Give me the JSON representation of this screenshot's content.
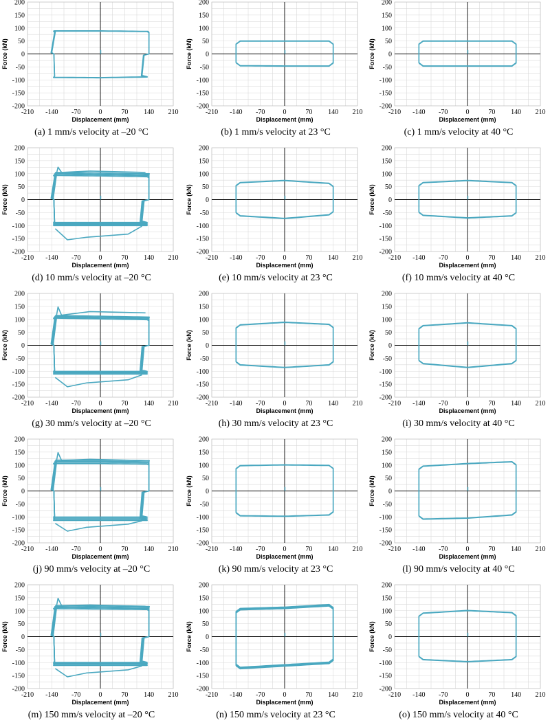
{
  "chart_data": {
    "type": "line",
    "xlabel": "Displacement (mm)",
    "ylabel": "Force (kN)",
    "xlim": [
      -210,
      210
    ],
    "ylim": [
      -200,
      200
    ],
    "x_ticks": [
      -210,
      -140,
      -70,
      0,
      70,
      140,
      210
    ],
    "y_ticks": [
      200,
      150,
      100,
      50,
      0,
      -50,
      -100,
      -150,
      -200
    ],
    "grid": true,
    "line_color": "#4aa8c0",
    "subplots": [
      {
        "caption": "(a) 1 mm/s velocity at –20 °C",
        "xmin": -140,
        "xmax": 140,
        "upper": [
          88,
          88,
          86
        ],
        "lower": [
          -90,
          -91,
          -88
        ],
        "spread": 0,
        "spike_up": 0,
        "spike_dn": 0,
        "extreme_up": 0,
        "extreme_dn": 0,
        "kind": "cold"
      },
      {
        "caption": "(b) 1 mm/s velocity at 23 °C",
        "xmin": -140,
        "xmax": 140,
        "upper": [
          49,
          49,
          49
        ],
        "lower": [
          -45,
          -46,
          -46
        ],
        "spread": 0,
        "spike_up": 0,
        "spike_dn": 0,
        "extreme_up": 0,
        "extreme_dn": 0,
        "kind": "warm"
      },
      {
        "caption": "(c) 1 mm/s velocity at 40 °C",
        "xmin": -140,
        "xmax": 140,
        "upper": [
          49,
          49,
          49
        ],
        "lower": [
          -46,
          -46,
          -46
        ],
        "spread": 0,
        "spike_up": 0,
        "spike_dn": 0,
        "extreme_up": 0,
        "extreme_dn": 0,
        "kind": "warm"
      },
      {
        "caption": "(d) 10 mm/s velocity at –20 °C",
        "xmin": -140,
        "xmax": 140,
        "upper": [
          97,
          95,
          92
        ],
        "lower": [
          -92,
          -92,
          -92
        ],
        "spread": 8,
        "spike_up": 125,
        "spike_dn": -155,
        "extreme_up": 110,
        "extreme_dn": -145,
        "kind": "cold"
      },
      {
        "caption": "(e) 10 mm/s velocity at 23 °C",
        "xmin": -140,
        "xmax": 140,
        "upper": [
          65,
          73,
          62
        ],
        "lower": [
          -62,
          -72,
          -58
        ],
        "spread": 0,
        "spike_up": 0,
        "spike_dn": 0,
        "extreme_up": 0,
        "extreme_dn": 0,
        "kind": "warm"
      },
      {
        "caption": "(f) 10 mm/s velocity at 40 °C",
        "xmin": -140,
        "xmax": 140,
        "upper": [
          65,
          73,
          65
        ],
        "lower": [
          -60,
          -70,
          -62
        ],
        "spread": 0,
        "spike_up": 0,
        "spike_dn": 0,
        "extreme_up": 0,
        "extreme_dn": 0,
        "kind": "warm"
      },
      {
        "caption": "(g) 30 mm/s velocity at –20 °C",
        "xmin": -140,
        "xmax": 140,
        "upper": [
          108,
          105,
          102
        ],
        "lower": [
          -104,
          -104,
          -104
        ],
        "spread": 7,
        "spike_up": 148,
        "spike_dn": -160,
        "extreme_up": 130,
        "extreme_dn": -145,
        "kind": "cold"
      },
      {
        "caption": "(h) 30 mm/s velocity at 23 °C",
        "xmin": -140,
        "xmax": 140,
        "upper": [
          78,
          88,
          80
        ],
        "lower": [
          -75,
          -85,
          -75
        ],
        "spread": 0,
        "spike_up": 0,
        "spike_dn": 0,
        "extreme_up": 0,
        "extreme_dn": 0,
        "kind": "warm"
      },
      {
        "caption": "(i) 30 mm/s velocity at 40 °C",
        "xmin": -140,
        "xmax": 140,
        "upper": [
          75,
          86,
          75
        ],
        "lower": [
          -70,
          -85,
          -70
        ],
        "spread": 0,
        "spike_up": 0,
        "spike_dn": 0,
        "extreme_up": 0,
        "extreme_dn": 0,
        "kind": "warm"
      },
      {
        "caption": "(j) 90 mm/s velocity at –20 °C",
        "xmin": -140,
        "xmax": 140,
        "upper": [
          110,
          110,
          108
        ],
        "lower": [
          -105,
          -105,
          -105
        ],
        "spread": 9,
        "spike_up": 148,
        "spike_dn": -155,
        "extreme_up": 122,
        "extreme_dn": -140,
        "kind": "cold"
      },
      {
        "caption": "(k) 90 mm/s velocity at 23 °C",
        "xmin": -140,
        "xmax": 140,
        "upper": [
          97,
          100,
          98
        ],
        "lower": [
          -95,
          -97,
          -92
        ],
        "spread": 0,
        "spike_up": 0,
        "spike_dn": 0,
        "extreme_up": 0,
        "extreme_dn": 0,
        "kind": "warm"
      },
      {
        "caption": "(l) 90 mm/s velocity at 40 °C",
        "xmin": -140,
        "xmax": 140,
        "upper": [
          95,
          105,
          112
        ],
        "lower": [
          -108,
          -104,
          -92
        ],
        "spread": 0,
        "spike_up": 0,
        "spike_dn": 0,
        "extreme_up": 0,
        "extreme_dn": 0,
        "kind": "warm"
      },
      {
        "caption": "(m) 150 mm/s velocity at –20 °C",
        "xmin": -140,
        "xmax": 140,
        "upper": [
          112,
          110,
          108
        ],
        "lower": [
          -103,
          -103,
          -103
        ],
        "spread": 8,
        "spike_up": 148,
        "spike_dn": -155,
        "extreme_up": 122,
        "extreme_dn": -140,
        "kind": "cold"
      },
      {
        "caption": "(n) 150 mm/s velocity at 23 °C",
        "xmin": -140,
        "xmax": 140,
        "upper": [
          105,
          110,
          120
        ],
        "lower": [
          -120,
          -110,
          -100
        ],
        "spread": 4,
        "spike_up": 0,
        "spike_dn": 0,
        "extreme_up": 0,
        "extreme_dn": 0,
        "kind": "warm"
      },
      {
        "caption": "(o) 150 mm/s velocity at 40 °C",
        "xmin": -140,
        "xmax": 140,
        "upper": [
          90,
          100,
          92
        ],
        "lower": [
          -88,
          -96,
          -88
        ],
        "spread": 0,
        "spike_up": 0,
        "spike_dn": 0,
        "extreme_up": 0,
        "extreme_dn": 0,
        "kind": "warm"
      }
    ]
  }
}
